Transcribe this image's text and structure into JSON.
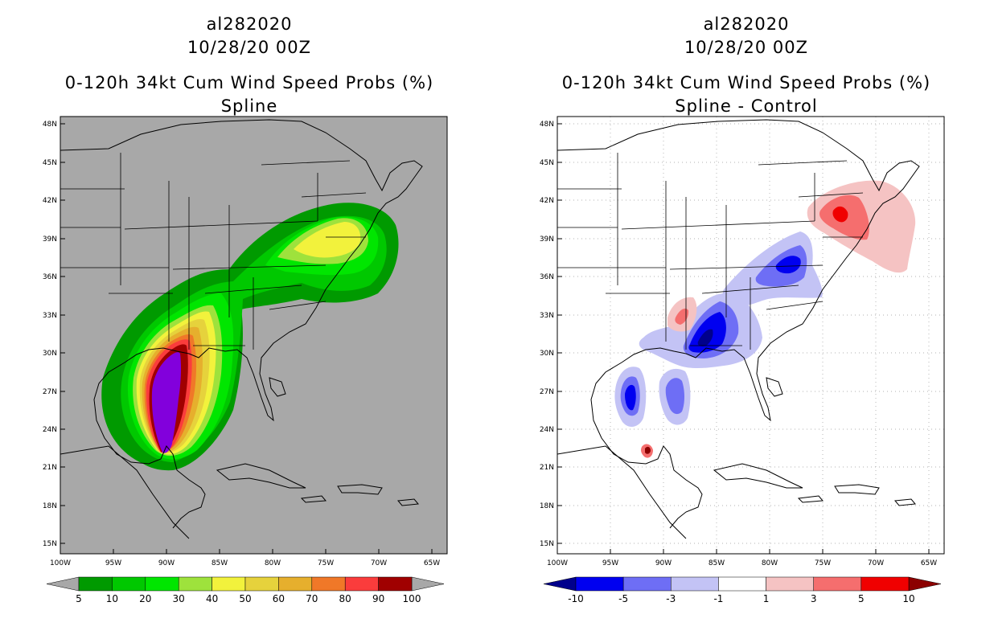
{
  "left_panel": {
    "storm_id": "al282020",
    "datetime": "10/28/20 00Z",
    "product": "0-120h 34kt Cum Wind Speed Probs (%)",
    "subtitle": "Spline",
    "colorbar": {
      "labels": [
        "5",
        "10",
        "20",
        "30",
        "40",
        "50",
        "60",
        "70",
        "80",
        "90",
        "100"
      ],
      "colors": [
        "#009a00",
        "#00c800",
        "#00e600",
        "#9ee23c",
        "#f2f23c",
        "#e6d23c",
        "#e6af2d",
        "#f07828",
        "#fa3c3c",
        "#a00000",
        "#8200dc"
      ],
      "background_color": "#a8a8a8"
    }
  },
  "right_panel": {
    "storm_id": "al282020",
    "datetime": "10/28/20 00Z",
    "product": "0-120h 34kt Cum Wind Speed Probs (%)",
    "subtitle": "Spline - Control",
    "colorbar": {
      "labels": [
        "-10",
        "-5",
        "-3",
        "-1",
        "1",
        "3",
        "5",
        "10"
      ],
      "colors": [
        "#00008c",
        "#0000f0",
        "#6e6ef5",
        "#c3c3f5",
        "#ffffff",
        "#f5c3c3",
        "#f56e6e",
        "#f00000",
        "#8c0000"
      ]
    }
  },
  "map_axes": {
    "lat_labels": [
      "48N",
      "45N",
      "42N",
      "39N",
      "36N",
      "33N",
      "30N",
      "27N",
      "24N",
      "21N",
      "18N",
      "15N"
    ],
    "lon_labels": [
      "100W",
      "95W",
      "90W",
      "85W",
      "80W",
      "75W",
      "70W",
      "65W"
    ]
  }
}
